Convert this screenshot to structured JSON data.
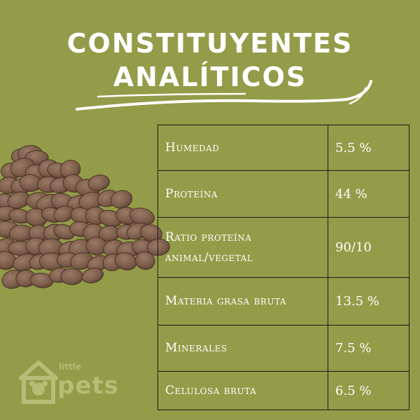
{
  "title": {
    "line1": "CONSTITUYENTES",
    "line2": "ANALÍTICOS"
  },
  "table": {
    "rows": [
      {
        "label": "Humedad",
        "value": "5.5 %"
      },
      {
        "label": "Proteína",
        "value": "44 %"
      },
      {
        "label_line1": "Ratio proteína",
        "label_line2": "animal/vegetal",
        "value": "90/10"
      },
      {
        "label": "Materia grasa bruta",
        "value": "13.5 %"
      },
      {
        "label": "Minerales",
        "value": "7.5 %"
      },
      {
        "label": "Celulosa bruta",
        "value": "6.5 %"
      }
    ]
  },
  "logo": {
    "small": "little",
    "big": "pets"
  },
  "colors": {
    "background": "#939c48",
    "title": "#ffffff",
    "kibble": "#7b5e4c",
    "logo": "#b5bd77"
  },
  "image": "pile-of-dry-pet-food-kibble"
}
